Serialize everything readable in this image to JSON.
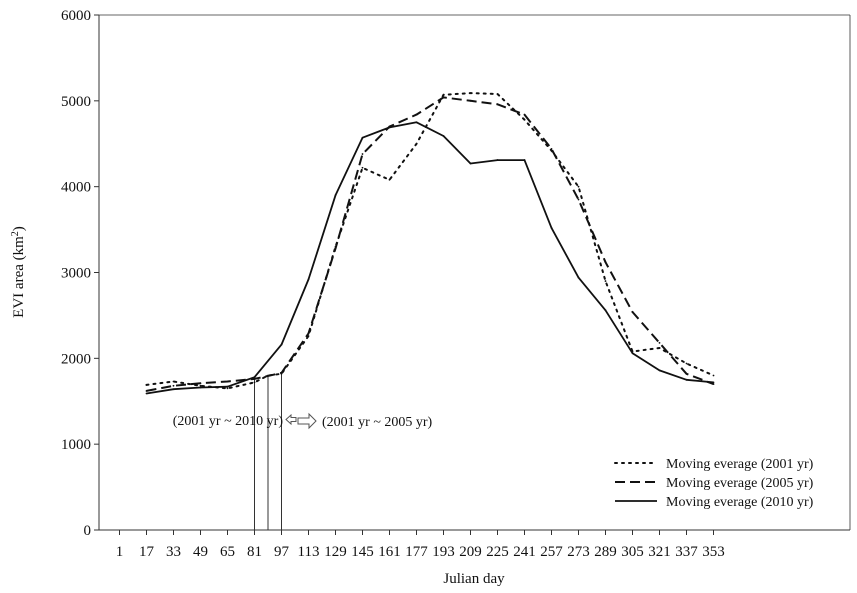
{
  "chart_data": {
    "type": "line",
    "xlabel": "Julian day",
    "ylabel": "EVI area (km²)",
    "ylim": [
      0,
      6000
    ],
    "yticks": [
      0,
      1000,
      2000,
      3000,
      4000,
      5000,
      6000
    ],
    "x": [
      1,
      17,
      33,
      49,
      65,
      81,
      97,
      113,
      129,
      145,
      161,
      177,
      193,
      209,
      225,
      241,
      257,
      273,
      289,
      305,
      321,
      337,
      353
    ],
    "grid": false,
    "legend_position": "bottom-right",
    "series": [
      {
        "name": "Moving everage (2001 yr)",
        "style": "dotted",
        "x": [
          17,
          33,
          49,
          65,
          81,
          89,
          97,
          113,
          129,
          145,
          161,
          177,
          193,
          209,
          225,
          241,
          257,
          273,
          289,
          305,
          321,
          337,
          353
        ],
        "values": [
          1690,
          1730,
          1680,
          1650,
          1720,
          1800,
          1820,
          2260,
          3300,
          4220,
          4080,
          4500,
          5070,
          5090,
          5080,
          4780,
          4420,
          4000,
          2900,
          2080,
          2120,
          1940,
          1800
        ]
      },
      {
        "name": "Moving everage (2005 yr)",
        "style": "dashed",
        "x": [
          17,
          33,
          49,
          65,
          81,
          97,
          113,
          129,
          145,
          161,
          177,
          193,
          209,
          225,
          241,
          257,
          273,
          289,
          305,
          321,
          337,
          353
        ],
        "values": [
          1620,
          1680,
          1710,
          1730,
          1760,
          1830,
          2290,
          3280,
          4380,
          4700,
          4840,
          5040,
          5000,
          4960,
          4840,
          4440,
          3850,
          3120,
          2540,
          2180,
          1820,
          1700
        ]
      },
      {
        "name": "Moving everage (2010 yr)",
        "style": "solid",
        "x": [
          17,
          33,
          49,
          65,
          81,
          97,
          113,
          129,
          145,
          161,
          177,
          193,
          209,
          225,
          241,
          257,
          273,
          289,
          305,
          321,
          337,
          353
        ],
        "values": [
          1590,
          1640,
          1660,
          1670,
          1780,
          2160,
          2920,
          3900,
          4570,
          4690,
          4750,
          4590,
          4270,
          4310,
          4310,
          3520,
          2940,
          2560,
          2060,
          1860,
          1750,
          1720
        ]
      }
    ],
    "annotations": [
      {
        "text": "(2001 yr ~ 2010 yr)",
        "arrow": "left"
      },
      {
        "text": "(2001 yr ~ 2005 yr)",
        "arrow": "right"
      }
    ],
    "annotation_lines_x": [
      81,
      89,
      97
    ],
    "colors": {
      "line": "#111111",
      "annotation": "#555555"
    }
  }
}
